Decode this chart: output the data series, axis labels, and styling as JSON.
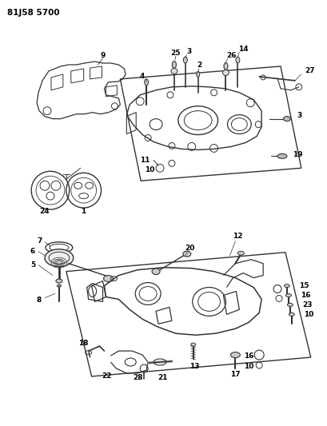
{
  "title": "81J58 5700",
  "bg_color": "#ffffff",
  "line_color": "#333333",
  "text_color": "#000000",
  "fig_width": 4.09,
  "fig_height": 5.33,
  "dpi": 100
}
